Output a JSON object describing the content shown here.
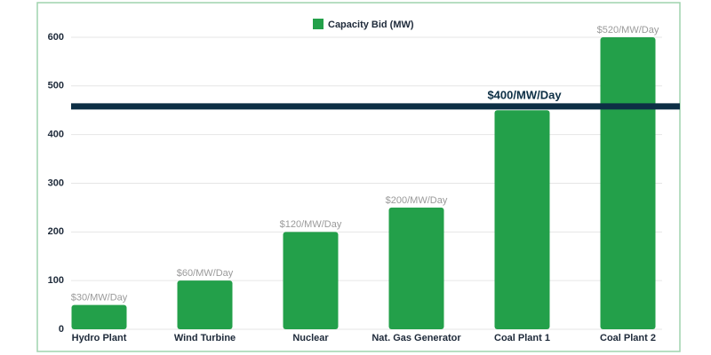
{
  "chart_data": {
    "type": "bar",
    "categories": [
      "Hydro Plant",
      "Wind Turbine",
      "Nuclear",
      "Nat. Gas Generator",
      "Coal Plant 1",
      "Coal Plant 2"
    ],
    "series": [
      {
        "name": "Capacity Bid (MW)",
        "color": "#23a04a",
        "values": [
          50,
          100,
          200,
          250,
          450,
          600
        ]
      }
    ],
    "bar_annotations": [
      "$30/MW/Day",
      "$60/MW/Day",
      "$120/MW/Day",
      "$200/MW/Day",
      null,
      "$520/MW/Day"
    ],
    "reference_line": {
      "value": 458,
      "label": "$400/MW/Day",
      "color": "#0d2f45"
    },
    "ylim": [
      0,
      620
    ],
    "yticks": [
      0,
      100,
      200,
      300,
      400,
      500,
      600
    ],
    "grid": true,
    "legend": "top"
  }
}
